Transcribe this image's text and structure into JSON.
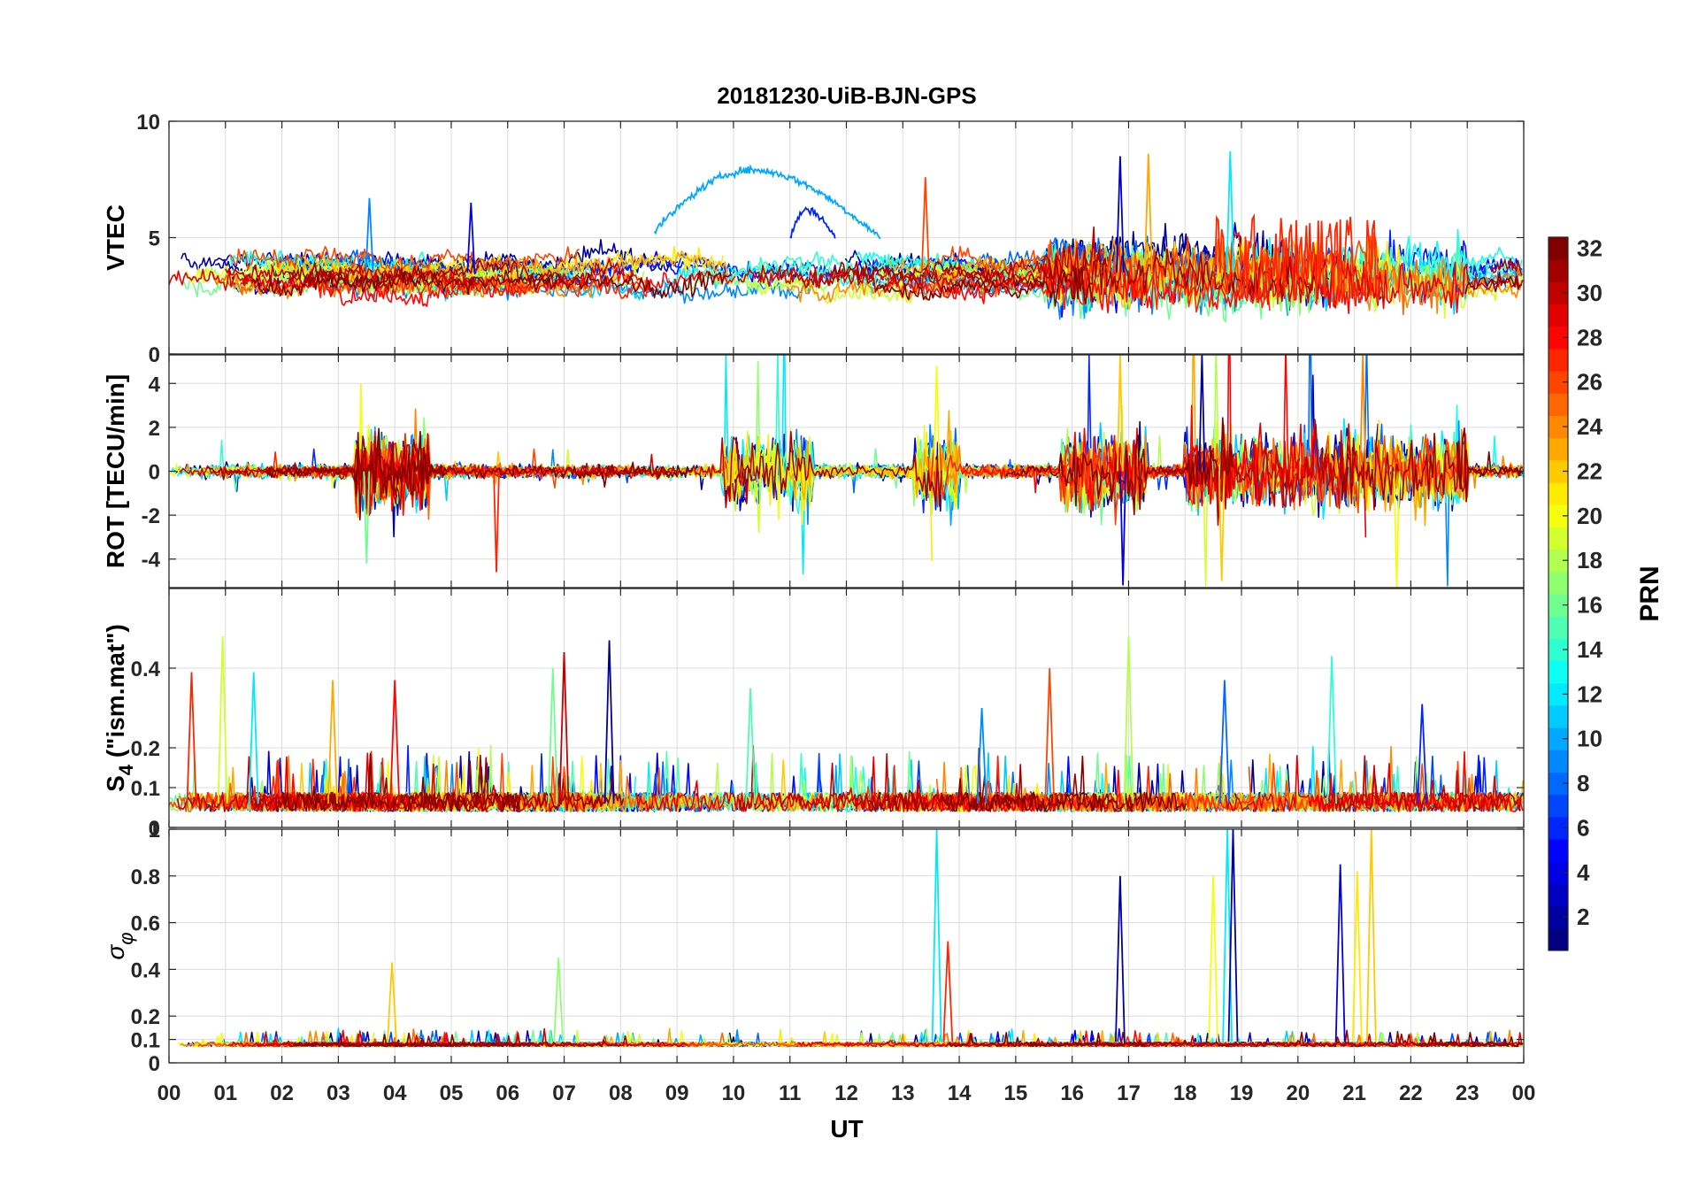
{
  "figure": {
    "title": "20181230-UiB-BJN-GPS",
    "xlabel": "UT",
    "xticks": [
      "00",
      "01",
      "02",
      "03",
      "04",
      "05",
      "06",
      "07",
      "08",
      "09",
      "10",
      "11",
      "12",
      "13",
      "14",
      "15",
      "16",
      "17",
      "18",
      "19",
      "20",
      "21",
      "22",
      "23",
      "00"
    ]
  },
  "colorbar": {
    "label": "PRN",
    "range": [
      1,
      32
    ],
    "ticks": [
      "2",
      "4",
      "6",
      "8",
      "10",
      "12",
      "14",
      "16",
      "18",
      "20",
      "22",
      "24",
      "26",
      "28",
      "30",
      "32"
    ],
    "colormap": "jet",
    "colormap_stops": [
      "#00008f",
      "#0000ff",
      "#00ffff",
      "#ffff00",
      "#ff0000",
      "#800000"
    ]
  },
  "chart_data": [
    {
      "type": "line",
      "ylabel": "VTEC",
      "ylim": [
        0,
        10
      ],
      "yticks": [
        {
          "label": "0",
          "value": 0
        },
        {
          "label": "5",
          "value": 5
        },
        {
          "label": "10",
          "value": 10
        }
      ],
      "grid": true,
      "xlim_hours": [
        0,
        24
      ],
      "series_model": {
        "n_series": 32,
        "series_by": "PRN",
        "samples_per_hour": 60,
        "baseline_range": [
          2.5,
          4.2
        ],
        "noise_amplitude": 0.6,
        "features": [
          {
            "prn": 10,
            "start_h": 8.6,
            "end_h": 12.6,
            "shape": "arc",
            "from": 5.3,
            "peak": 7.9,
            "peak_h": 10.3,
            "to": 5.0
          },
          {
            "prn": 6,
            "start_h": 11.0,
            "end_h": 11.8,
            "shape": "arc",
            "from": 5.0,
            "peak": 6.2,
            "peak_h": 11.3,
            "to": 5.0
          },
          {
            "prn": 27,
            "start_h": 18.5,
            "end_h": 21.5,
            "shape": "spikes",
            "peak": 6.0
          },
          {
            "prn": 12,
            "start_h": 18.7,
            "end_h": 18.9,
            "shape": "spike",
            "peak": 8.7
          },
          {
            "prn": 23,
            "start_h": 17.3,
            "end_h": 17.4,
            "shape": "spike",
            "peak": 8.6
          },
          {
            "prn": 3,
            "start_h": 16.8,
            "end_h": 16.9,
            "shape": "spike",
            "peak": 8.5
          },
          {
            "prn": 26,
            "start_h": 13.3,
            "end_h": 13.5,
            "shape": "spike",
            "peak": 7.6
          },
          {
            "prn": 9,
            "start_h": 3.5,
            "end_h": 3.6,
            "shape": "spike",
            "peak": 6.7
          },
          {
            "prn": 5,
            "start_h": 5.3,
            "end_h": 5.4,
            "shape": "spike",
            "peak": 6.5
          }
        ]
      }
    },
    {
      "type": "line",
      "ylabel": "ROT [TECU/min]",
      "ylim": [
        -5.3,
        5.3
      ],
      "yticks": [
        {
          "label": "4",
          "value": 4
        },
        {
          "label": "2",
          "value": 2
        },
        {
          "label": "0",
          "value": 0
        },
        {
          "label": "-2",
          "value": -2
        },
        {
          "label": "-4",
          "value": -4
        }
      ],
      "grid": true,
      "xlim_hours": [
        0,
        24
      ],
      "series_model": {
        "n_series": 32,
        "series_by": "PRN",
        "samples_per_hour": 60,
        "quiet_amplitude": 0.35,
        "active_amplitude": 2.0,
        "active_intervals_h": [
          [
            3.3,
            4.6
          ],
          [
            9.8,
            11.4
          ],
          [
            13.2,
            14.0
          ],
          [
            15.8,
            17.3
          ],
          [
            18.0,
            23.0
          ]
        ],
        "extremes": [
          {
            "prn": 4,
            "hour": 16.9,
            "value": -5.2
          },
          {
            "prn": 22,
            "hour": 16.85,
            "value": 5.3
          },
          {
            "prn": 2,
            "hour": 18.3,
            "value": 5.3
          },
          {
            "prn": 24,
            "hour": 21.15,
            "value": 5.3
          },
          {
            "prn": 22,
            "hour": 18.65,
            "value": -5.0
          },
          {
            "prn": 20,
            "hour": 21.75,
            "value": -5.3
          },
          {
            "prn": 27,
            "hour": 5.8,
            "value": -4.6
          },
          {
            "prn": 16,
            "hour": 3.5,
            "value": -4.2
          },
          {
            "prn": 20,
            "hour": 13.6,
            "value": 4.8
          }
        ]
      }
    },
    {
      "type": "line",
      "ylabel": "S_4 (\"ism.mat\")",
      "ylabel_main": "S",
      "ylabel_subscript": "4",
      "ylabel_rest": " (\"ism.mat\")",
      "ylim": [
        0,
        0.6
      ],
      "yticks": [
        {
          "label": "0",
          "value": 0
        },
        {
          "label": "0.1",
          "value": 0.1
        },
        {
          "label": "0.2",
          "value": 0.2
        },
        {
          "label": "0.4",
          "value": 0.4
        }
      ],
      "grid": true,
      "xlim_hours": [
        0,
        24
      ],
      "series_model": {
        "n_series": 32,
        "series_by": "PRN",
        "samples_per_hour": 60,
        "baseline_range": [
          0.04,
          0.12
        ],
        "peaks": [
          {
            "prn": 27,
            "hour": 0.4,
            "value": 0.39
          },
          {
            "prn": 19,
            "hour": 0.95,
            "value": 0.48
          },
          {
            "prn": 12,
            "hour": 1.5,
            "value": 0.39
          },
          {
            "prn": 23,
            "hour": 2.9,
            "value": 0.37
          },
          {
            "prn": 28,
            "hour": 4.0,
            "value": 0.37
          },
          {
            "prn": 16,
            "hour": 6.8,
            "value": 0.4
          },
          {
            "prn": 30,
            "hour": 7.0,
            "value": 0.44
          },
          {
            "prn": 2,
            "hour": 7.8,
            "value": 0.47
          },
          {
            "prn": 15,
            "hour": 10.3,
            "value": 0.35
          },
          {
            "prn": 9,
            "hour": 14.4,
            "value": 0.3
          },
          {
            "prn": 26,
            "hour": 15.6,
            "value": 0.4
          },
          {
            "prn": 18,
            "hour": 17.0,
            "value": 0.48
          },
          {
            "prn": 8,
            "hour": 18.7,
            "value": 0.37
          },
          {
            "prn": 14,
            "hour": 20.6,
            "value": 0.43
          },
          {
            "prn": 6,
            "hour": 22.2,
            "value": 0.31
          }
        ]
      }
    },
    {
      "type": "line",
      "ylabel": "σ_φ",
      "ylabel_main": "σ",
      "ylabel_subscript": "φ",
      "ylim": [
        0,
        1
      ],
      "yticks": [
        {
          "label": "0",
          "value": 0
        },
        {
          "label": "0.1",
          "value": 0.1
        },
        {
          "label": "0.2",
          "value": 0.2
        },
        {
          "label": "0.4",
          "value": 0.4
        },
        {
          "label": "0.6",
          "value": 0.6
        },
        {
          "label": "0.8",
          "value": 0.8
        },
        {
          "label": "1",
          "value": 1.0
        }
      ],
      "grid": true,
      "xlim_hours": [
        0,
        24
      ],
      "series_model": {
        "n_series": 32,
        "series_by": "PRN",
        "samples_per_hour": 60,
        "baseline_range": [
          0.07,
          0.1
        ],
        "peaks": [
          {
            "prn": 22,
            "hour": 3.95,
            "value": 0.43
          },
          {
            "prn": 17,
            "hour": 6.9,
            "value": 0.45
          },
          {
            "prn": 12,
            "hour": 13.6,
            "value": 1.0
          },
          {
            "prn": 27,
            "hour": 13.8,
            "value": 0.52
          },
          {
            "prn": 2,
            "hour": 16.85,
            "value": 0.8
          },
          {
            "prn": 12,
            "hour": 18.75,
            "value": 1.0
          },
          {
            "prn": 2,
            "hour": 18.85,
            "value": 1.0
          },
          {
            "prn": 20,
            "hour": 18.5,
            "value": 0.8
          },
          {
            "prn": 4,
            "hour": 20.75,
            "value": 0.85
          },
          {
            "prn": 22,
            "hour": 21.3,
            "value": 1.0
          },
          {
            "prn": 21,
            "hour": 21.05,
            "value": 0.82
          }
        ]
      }
    }
  ]
}
